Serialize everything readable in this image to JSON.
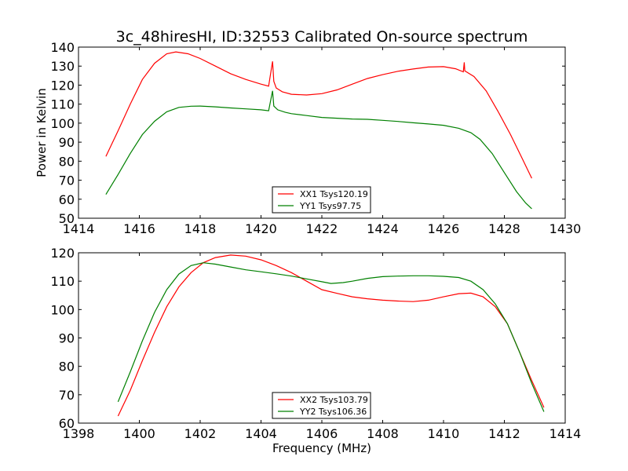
{
  "figure": {
    "title": "3c_48hiresHI, ID:32553 Calibrated On-source spectrum"
  },
  "chart_data": [
    {
      "type": "line",
      "title": "3c_48hiresHI, ID:32553 Calibrated On-source spectrum",
      "xlabel": "",
      "ylabel": "Power in Kelvin",
      "xlim": [
        1414,
        1430
      ],
      "ylim": [
        50,
        140
      ],
      "xticks": [
        "1414",
        "1416",
        "1418",
        "1420",
        "1422",
        "1424",
        "1426",
        "1428",
        "1430"
      ],
      "yticks": [
        "50",
        "60",
        "70",
        "80",
        "90",
        "100",
        "110",
        "120",
        "130",
        "140"
      ],
      "grid": false,
      "legend_position": "lower-center",
      "series": [
        {
          "name": "XX1 Tsys120.19",
          "color": "#ff0000",
          "x": [
            1414.9,
            1415.3,
            1415.7,
            1416.1,
            1416.5,
            1416.9,
            1417.2,
            1417.6,
            1418.0,
            1418.5,
            1419.0,
            1419.5,
            1420.0,
            1420.25,
            1420.38,
            1420.42,
            1420.5,
            1420.7,
            1421.0,
            1421.5,
            1422.0,
            1422.5,
            1423.0,
            1423.5,
            1424.0,
            1424.5,
            1425.0,
            1425.5,
            1426.0,
            1426.4,
            1426.65,
            1426.68,
            1426.7,
            1427.0,
            1427.4,
            1427.8,
            1428.2,
            1428.6,
            1428.9
          ],
          "values": [
            82.5,
            96,
            110,
            123,
            131.5,
            136.5,
            137.5,
            136.5,
            134,
            130,
            126,
            123,
            120.5,
            119.5,
            132.5,
            122,
            118.5,
            116.5,
            115.2,
            114.8,
            115.5,
            117.5,
            120.5,
            123.5,
            125.5,
            127.3,
            128.5,
            129.5,
            129.7,
            128.6,
            127,
            132,
            127.5,
            124.5,
            117,
            106,
            94,
            81,
            71
          ]
        },
        {
          "name": "YY1 Tsys97.75",
          "color": "#008000",
          "x": [
            1414.9,
            1415.3,
            1415.7,
            1416.1,
            1416.5,
            1416.9,
            1417.3,
            1417.7,
            1418.0,
            1418.5,
            1419.0,
            1419.5,
            1420.0,
            1420.25,
            1420.38,
            1420.42,
            1420.55,
            1420.8,
            1421.0,
            1421.5,
            1422.0,
            1422.5,
            1423.0,
            1423.5,
            1424.0,
            1424.5,
            1425.0,
            1425.5,
            1426.0,
            1426.5,
            1426.9,
            1427.2,
            1427.6,
            1428.0,
            1428.4,
            1428.7,
            1428.9
          ],
          "values": [
            62.5,
            73,
            84,
            94,
            101,
            106,
            108.3,
            108.9,
            109,
            108.6,
            108,
            107.5,
            107,
            106.5,
            117,
            109,
            107,
            105.7,
            105,
            104,
            103,
            102.6,
            102.2,
            102,
            101.5,
            100.9,
            100.2,
            99.6,
            98.9,
            97.3,
            95,
            91.5,
            84,
            74,
            64,
            58,
            55
          ]
        }
      ]
    },
    {
      "type": "line",
      "title": "",
      "xlabel": "Frequency (MHz)",
      "ylabel": "",
      "xlim": [
        1398,
        1414
      ],
      "ylim": [
        60,
        120
      ],
      "xticks": [
        "1398",
        "1400",
        "1402",
        "1404",
        "1406",
        "1408",
        "1410",
        "1412",
        "1414"
      ],
      "yticks": [
        "60",
        "70",
        "80",
        "90",
        "100",
        "110",
        "120"
      ],
      "grid": false,
      "legend_position": "lower-center",
      "series": [
        {
          "name": "XX2 Tsys103.79",
          "color": "#ff0000",
          "x": [
            1399.3,
            1399.7,
            1400.1,
            1400.5,
            1400.9,
            1401.3,
            1401.7,
            1402.1,
            1402.5,
            1403.0,
            1403.5,
            1404.0,
            1404.5,
            1405.0,
            1405.5,
            1406.0,
            1406.5,
            1407.0,
            1407.5,
            1408.0,
            1408.5,
            1409.0,
            1409.5,
            1410.0,
            1410.5,
            1410.9,
            1411.3,
            1411.7,
            1412.1,
            1412.5,
            1412.9,
            1413.3
          ],
          "values": [
            62.5,
            71.5,
            82,
            92,
            101,
            108,
            113,
            116.5,
            118.3,
            119.2,
            118.8,
            117.5,
            115.5,
            113,
            110,
            107,
            105.7,
            104.5,
            103.8,
            103.3,
            103,
            102.8,
            103.3,
            104.5,
            105.6,
            105.8,
            104.5,
            101,
            95,
            85,
            75,
            65.5
          ]
        },
        {
          "name": "YY2 Tsys106.36",
          "color": "#008000",
          "x": [
            1399.3,
            1399.7,
            1400.1,
            1400.5,
            1400.9,
            1401.3,
            1401.7,
            1402.1,
            1402.5,
            1403.0,
            1403.5,
            1404.0,
            1404.5,
            1405.0,
            1405.5,
            1406.0,
            1406.3,
            1406.7,
            1407.0,
            1407.5,
            1408.0,
            1408.5,
            1409.0,
            1409.5,
            1410.0,
            1410.5,
            1410.9,
            1411.3,
            1411.7,
            1412.1,
            1412.5,
            1412.9,
            1413.3
          ],
          "values": [
            67.5,
            78,
            89,
            99,
            107,
            112.5,
            115.5,
            116.5,
            116,
            115,
            114,
            113.3,
            112.6,
            111.8,
            110.8,
            109.8,
            109.2,
            109.5,
            110,
            111,
            111.6,
            111.8,
            111.9,
            111.9,
            111.7,
            111.3,
            110,
            107,
            102,
            95,
            85,
            74,
            64
          ]
        }
      ]
    }
  ]
}
